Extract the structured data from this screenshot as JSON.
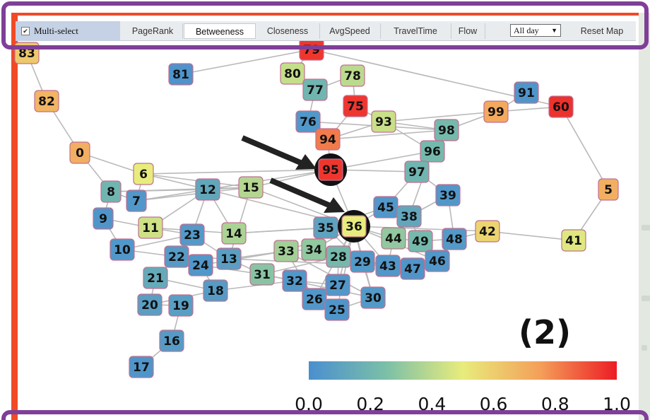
{
  "toolbar": {
    "multiselect_label": "Multi-select",
    "multiselect_checked": true,
    "tabs": [
      "PageRank",
      "Betweeness",
      "Closeness",
      "AvgSpeed",
      "TravelTime",
      "Flow"
    ],
    "active_tab": "Betweeness",
    "time_select": "All day",
    "reset_label": "Reset Map"
  },
  "panel_label": "(2)",
  "colorbar": {
    "colors": [
      "#4a8fcf",
      "#7bbfa8",
      "#e8ec7c",
      "#f4a05a",
      "#ec1c24"
    ],
    "ticks": [
      "0.0",
      "0.2",
      "0.4",
      "0.6",
      "0.8",
      "1.0"
    ]
  },
  "graph": {
    "metric": "Betweeness",
    "highlighted": [
      "95",
      "36"
    ],
    "nodes": [
      {
        "id": "83",
        "value": 0.62
      },
      {
        "id": "79",
        "value": 0.95
      },
      {
        "id": "81",
        "value": 0.02
      },
      {
        "id": "82",
        "value": 0.68
      },
      {
        "id": "80",
        "value": 0.42
      },
      {
        "id": "78",
        "value": 0.4
      },
      {
        "id": "77",
        "value": 0.2
      },
      {
        "id": "75",
        "value": 0.95
      },
      {
        "id": "91",
        "value": 0.03
      },
      {
        "id": "60",
        "value": 0.96
      },
      {
        "id": "99",
        "value": 0.72
      },
      {
        "id": "93",
        "value": 0.43
      },
      {
        "id": "76",
        "value": 0.04
      },
      {
        "id": "94",
        "value": 0.82
      },
      {
        "id": "98",
        "value": 0.22
      },
      {
        "id": "0",
        "value": 0.7
      },
      {
        "id": "96",
        "value": 0.22
      },
      {
        "id": "6",
        "value": 0.5
      },
      {
        "id": "95",
        "value": 0.95
      },
      {
        "id": "97",
        "value": 0.2
      },
      {
        "id": "12",
        "value": 0.12
      },
      {
        "id": "15",
        "value": 0.38
      },
      {
        "id": "8",
        "value": 0.2
      },
      {
        "id": "7",
        "value": 0.04
      },
      {
        "id": "5",
        "value": 0.7
      },
      {
        "id": "39",
        "value": 0.04
      },
      {
        "id": "45",
        "value": 0.04
      },
      {
        "id": "9",
        "value": 0.03
      },
      {
        "id": "38",
        "value": 0.12
      },
      {
        "id": "11",
        "value": 0.44
      },
      {
        "id": "35",
        "value": 0.1
      },
      {
        "id": "36",
        "value": 0.5
      },
      {
        "id": "42",
        "value": 0.58
      },
      {
        "id": "14",
        "value": 0.36
      },
      {
        "id": "23",
        "value": 0.05
      },
      {
        "id": "44",
        "value": 0.3
      },
      {
        "id": "49",
        "value": 0.22
      },
      {
        "id": "48",
        "value": 0.05
      },
      {
        "id": "41",
        "value": 0.48
      },
      {
        "id": "10",
        "value": 0.04
      },
      {
        "id": "34",
        "value": 0.3
      },
      {
        "id": "33",
        "value": 0.34
      },
      {
        "id": "22",
        "value": 0.06
      },
      {
        "id": "13",
        "value": 0.08
      },
      {
        "id": "28",
        "value": 0.22
      },
      {
        "id": "24",
        "value": 0.04
      },
      {
        "id": "29",
        "value": 0.05
      },
      {
        "id": "43",
        "value": 0.04
      },
      {
        "id": "47",
        "value": 0.03
      },
      {
        "id": "46",
        "value": 0.04
      },
      {
        "id": "31",
        "value": 0.28
      },
      {
        "id": "21",
        "value": 0.14
      },
      {
        "id": "32",
        "value": 0.04
      },
      {
        "id": "18",
        "value": 0.06
      },
      {
        "id": "27",
        "value": 0.04
      },
      {
        "id": "30",
        "value": 0.05
      },
      {
        "id": "26",
        "value": 0.04
      },
      {
        "id": "20",
        "value": 0.08
      },
      {
        "id": "19",
        "value": 0.08
      },
      {
        "id": "25",
        "value": 0.03
      },
      {
        "id": "16",
        "value": 0.06
      },
      {
        "id": "17",
        "value": 0.03
      }
    ],
    "edges": [
      [
        "83",
        "82"
      ],
      [
        "82",
        "0"
      ],
      [
        "0",
        "8"
      ],
      [
        "8",
        "7"
      ],
      [
        "8",
        "9"
      ],
      [
        "7",
        "6"
      ],
      [
        "6",
        "12"
      ],
      [
        "6",
        "15"
      ],
      [
        "7",
        "12"
      ],
      [
        "7",
        "15"
      ],
      [
        "8",
        "12"
      ],
      [
        "12",
        "15"
      ],
      [
        "15",
        "95"
      ],
      [
        "6",
        "95"
      ],
      [
        "12",
        "95"
      ],
      [
        "9",
        "11"
      ],
      [
        "9",
        "10"
      ],
      [
        "10",
        "23"
      ],
      [
        "11",
        "23"
      ],
      [
        "11",
        "14"
      ],
      [
        "12",
        "23"
      ],
      [
        "12",
        "14"
      ],
      [
        "12",
        "36"
      ],
      [
        "15",
        "36"
      ],
      [
        "14",
        "36"
      ],
      [
        "14",
        "35"
      ],
      [
        "23",
        "22"
      ],
      [
        "22",
        "24"
      ],
      [
        "23",
        "13"
      ],
      [
        "13",
        "31"
      ],
      [
        "22",
        "21"
      ],
      [
        "21",
        "20"
      ],
      [
        "20",
        "19"
      ],
      [
        "19",
        "16"
      ],
      [
        "16",
        "17"
      ],
      [
        "21",
        "18"
      ],
      [
        "24",
        "18"
      ],
      [
        "18",
        "32"
      ],
      [
        "13",
        "33"
      ],
      [
        "33",
        "34"
      ],
      [
        "34",
        "28"
      ],
      [
        "28",
        "27"
      ],
      [
        "27",
        "26"
      ],
      [
        "26",
        "25"
      ],
      [
        "25",
        "30"
      ],
      [
        "30",
        "29"
      ],
      [
        "29",
        "43"
      ],
      [
        "43",
        "47"
      ],
      [
        "47",
        "46"
      ],
      [
        "46",
        "48"
      ],
      [
        "48",
        "42"
      ],
      [
        "42",
        "41"
      ],
      [
        "48",
        "39"
      ],
      [
        "39",
        "38"
      ],
      [
        "38",
        "45"
      ],
      [
        "45",
        "36"
      ],
      [
        "35",
        "36"
      ],
      [
        "36",
        "44"
      ],
      [
        "44",
        "49"
      ],
      [
        "49",
        "48"
      ],
      [
        "38",
        "44"
      ],
      [
        "38",
        "49"
      ],
      [
        "97",
        "39"
      ],
      [
        "97",
        "96"
      ],
      [
        "96",
        "98"
      ],
      [
        "98",
        "93"
      ],
      [
        "93",
        "75"
      ],
      [
        "75",
        "78"
      ],
      [
        "78",
        "77"
      ],
      [
        "77",
        "80"
      ],
      [
        "80",
        "79"
      ],
      [
        "77",
        "76"
      ],
      [
        "76",
        "94"
      ],
      [
        "94",
        "95"
      ],
      [
        "94",
        "75"
      ],
      [
        "95",
        "36"
      ],
      [
        "95",
        "96"
      ],
      [
        "95",
        "97"
      ],
      [
        "94",
        "93"
      ],
      [
        "94",
        "98"
      ],
      [
        "93",
        "99"
      ],
      [
        "99",
        "91"
      ],
      [
        "99",
        "60"
      ],
      [
        "60",
        "5"
      ],
      [
        "5",
        "41"
      ],
      [
        "60",
        "79"
      ],
      [
        "98",
        "99"
      ],
      [
        "97",
        "45"
      ],
      [
        "96",
        "38"
      ],
      [
        "33",
        "36"
      ],
      [
        "31",
        "32"
      ],
      [
        "32",
        "27"
      ],
      [
        "28",
        "29"
      ],
      [
        "34",
        "36"
      ],
      [
        "31",
        "28"
      ],
      [
        "24",
        "31"
      ],
      [
        "22",
        "13"
      ],
      [
        "42",
        "36"
      ],
      [
        "29",
        "36"
      ],
      [
        "43",
        "36"
      ],
      [
        "30",
        "36"
      ],
      [
        "26",
        "36"
      ],
      [
        "25",
        "36"
      ],
      [
        "27",
        "36"
      ],
      [
        "28",
        "36"
      ],
      [
        "20",
        "18"
      ],
      [
        "33",
        "26"
      ],
      [
        "31",
        "30"
      ],
      [
        "13",
        "43"
      ],
      [
        "24",
        "33"
      ],
      [
        "10",
        "22"
      ],
      [
        "35",
        "29"
      ],
      [
        "34",
        "43"
      ],
      [
        "33",
        "30"
      ],
      [
        "28",
        "47"
      ],
      [
        "36",
        "46"
      ],
      [
        "44",
        "43"
      ],
      [
        "45",
        "35"
      ],
      [
        "12",
        "11"
      ],
      [
        "15",
        "13"
      ],
      [
        "81",
        "79"
      ],
      [
        "93",
        "96"
      ],
      [
        "76",
        "98"
      ],
      [
        "8",
        "15"
      ],
      [
        "0",
        "6"
      ]
    ]
  }
}
